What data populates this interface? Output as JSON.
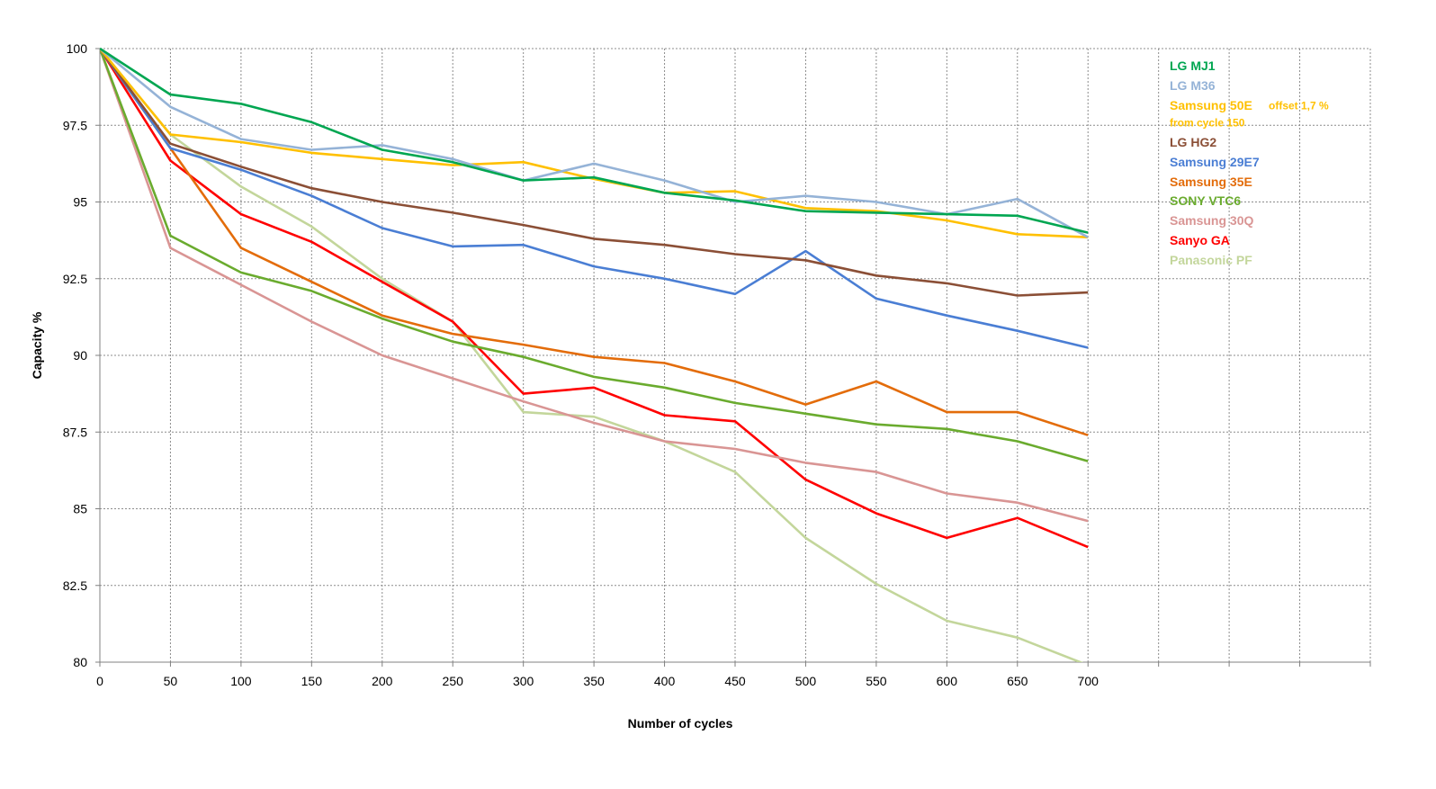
{
  "chart_data": {
    "type": "line",
    "xlabel": "Number of cycles",
    "ylabel": "Capacity %",
    "ylim": [
      80,
      100
    ],
    "xlim": [
      0,
      900
    ],
    "x_ticks": [
      0,
      50,
      100,
      150,
      200,
      250,
      300,
      350,
      400,
      450,
      500,
      550,
      600,
      650,
      700
    ],
    "y_ticks": [
      80,
      82.5,
      85,
      87.5,
      90,
      92.5,
      95,
      97.5,
      100
    ],
    "grid": true,
    "legend_position": "top-right",
    "x": [
      0,
      50,
      100,
      150,
      200,
      250,
      300,
      350,
      400,
      450,
      500,
      550,
      600,
      650,
      700
    ],
    "series": [
      {
        "name": "LG MJ1",
        "color": "#00a651",
        "values": [
          100,
          98.5,
          98.2,
          97.6,
          96.7,
          96.3,
          95.7,
          95.8,
          95.3,
          95.05,
          94.7,
          94.65,
          94.6,
          94.55,
          94.0
        ]
      },
      {
        "name": "LG M36",
        "color": "#95b3d7",
        "values": [
          100,
          98.1,
          97.05,
          96.7,
          96.85,
          96.4,
          95.7,
          96.25,
          95.7,
          95.0,
          95.2,
          95.0,
          94.6,
          95.1,
          93.85
        ]
      },
      {
        "name": "Samsung 50E",
        "note": "offset 1,7 %",
        "note2": "from cycle 150",
        "color": "#ffc000",
        "values": [
          100,
          97.2,
          96.95,
          96.6,
          96.4,
          96.2,
          96.3,
          95.75,
          95.3,
          95.35,
          94.8,
          94.7,
          94.4,
          93.95,
          93.85
        ]
      },
      {
        "name": "LG HG2",
        "color": "#8b4f36",
        "values": [
          100,
          96.9,
          96.15,
          95.45,
          95.0,
          94.65,
          94.25,
          93.8,
          93.6,
          93.3,
          93.1,
          92.6,
          92.35,
          91.95,
          92.05
        ]
      },
      {
        "name": "Samsung 29E7",
        "color": "#4a7ed4",
        "values": [
          100,
          96.75,
          96.05,
          95.2,
          94.15,
          93.55,
          93.6,
          92.9,
          92.5,
          92.0,
          93.4,
          91.85,
          91.3,
          90.8,
          90.25
        ]
      },
      {
        "name": "Samsung 35E",
        "color": "#e36c0a",
        "values": [
          100,
          96.75,
          93.5,
          92.4,
          91.3,
          90.7,
          90.35,
          89.95,
          89.75,
          89.15,
          88.4,
          89.15,
          88.15,
          88.15,
          87.4
        ]
      },
      {
        "name": "SONY VTC6",
        "color": "#6aab2e",
        "values": [
          100,
          93.9,
          92.7,
          92.1,
          91.2,
          90.45,
          89.95,
          89.3,
          88.95,
          88.45,
          88.1,
          87.75,
          87.6,
          87.2,
          86.55
        ]
      },
      {
        "name": "Samsung 30Q",
        "color": "#d99594",
        "values": [
          100,
          93.5,
          92.3,
          91.1,
          90.0,
          89.25,
          88.5,
          87.8,
          87.2,
          86.95,
          86.5,
          86.2,
          85.5,
          85.2,
          84.6
        ]
      },
      {
        "name": "Sanyo GA",
        "color": "#ff0000",
        "values": [
          100,
          96.35,
          94.6,
          93.7,
          92.4,
          91.1,
          88.75,
          88.95,
          88.05,
          87.85,
          85.95,
          84.85,
          84.05,
          84.7,
          83.75
        ]
      },
      {
        "name": "Panasonic PF",
        "color": "#c3d69b",
        "values": [
          100,
          97.2,
          95.5,
          94.2,
          92.5,
          91.1,
          88.15,
          88.0,
          87.2,
          86.2,
          84.05,
          82.55,
          81.35,
          80.8,
          79.9
        ]
      }
    ]
  }
}
